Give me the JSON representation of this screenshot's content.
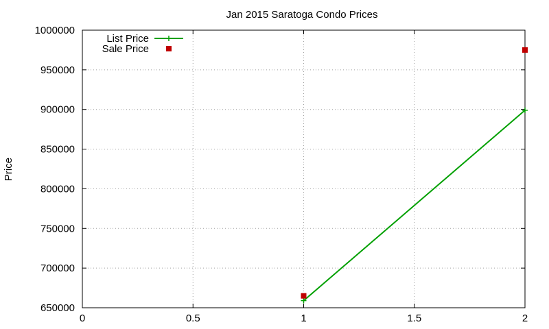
{
  "chart_data": {
    "type": "line",
    "title": "Jan 2015 Saratoga Condo Prices",
    "xlabel": "",
    "ylabel": "Price",
    "xlim": [
      0,
      2
    ],
    "ylim": [
      650000,
      1000000
    ],
    "xticks": [
      0,
      0.5,
      1,
      1.5,
      2
    ],
    "xtick_labels": [
      "0",
      "0.5",
      "1",
      "1.5",
      "2"
    ],
    "yticks": [
      650000,
      700000,
      750000,
      800000,
      850000,
      900000,
      950000,
      1000000
    ],
    "ytick_labels": [
      "650000",
      "700000",
      "750000",
      "800000",
      "850000",
      "900000",
      "950000",
      "1000000"
    ],
    "grid": true,
    "legend_position": "top-left",
    "series": [
      {
        "name": "List Price",
        "style": "line-with-plus-markers",
        "color": "#00a000",
        "points": [
          {
            "x": 1,
            "y": 659000
          },
          {
            "x": 2,
            "y": 899000
          }
        ]
      },
      {
        "name": "Sale Price",
        "style": "square-markers",
        "color": "#c00000",
        "points": [
          {
            "x": 1,
            "y": 665000
          },
          {
            "x": 2,
            "y": 975000
          }
        ]
      }
    ]
  }
}
